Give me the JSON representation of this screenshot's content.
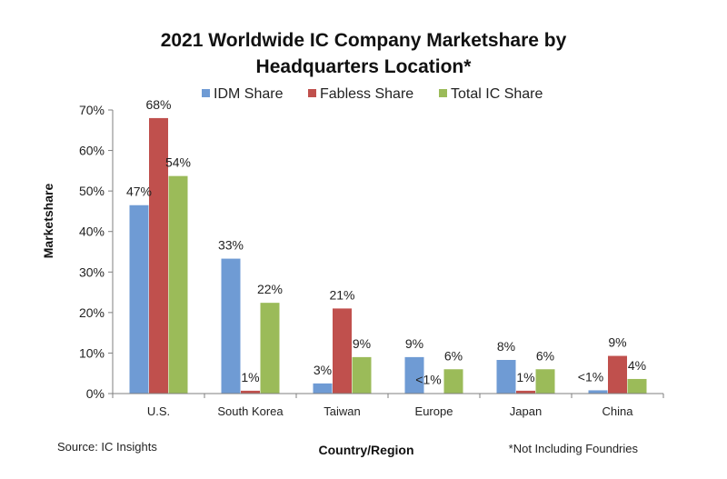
{
  "chart_data": {
    "type": "bar",
    "title_line1": "2021 Worldwide IC Company Marketshare by",
    "title_line2": "Headquarters Location*",
    "categories": [
      "U.S.",
      "South Korea",
      "Taiwan",
      "Europe",
      "Japan",
      "China"
    ],
    "series": [
      {
        "name": "IDM Share",
        "color": "#6f9bd4",
        "values": [
          46.5,
          33.3,
          2.5,
          9.0,
          8.3,
          0.8
        ],
        "labels": [
          "47%",
          "33%",
          "3%",
          "9%",
          "8%",
          "<1%"
        ]
      },
      {
        "name": "Fabless Share",
        "color": "#c0504d",
        "values": [
          68.0,
          0.7,
          21.0,
          0.1,
          0.7,
          9.3
        ],
        "labels": [
          "68%",
          "1%",
          "21%",
          "<1%",
          "1%",
          "9%"
        ]
      },
      {
        "name": "Total IC Share",
        "color": "#9bbb59",
        "values": [
          53.7,
          22.4,
          9.0,
          6.0,
          6.0,
          3.6
        ],
        "labels": [
          "54%",
          "22%",
          "9%",
          "6%",
          "6%",
          "4%"
        ]
      }
    ],
    "ylabel": "Marketshare",
    "xlabel": "Country/Region",
    "ylim": [
      0,
      70
    ],
    "yticks": [
      0,
      10,
      20,
      30,
      40,
      50,
      60,
      70
    ],
    "ytick_labels": [
      "0%",
      "10%",
      "20%",
      "30%",
      "40%",
      "50%",
      "60%",
      "70%"
    ],
    "grid": false,
    "legend_position": "top"
  },
  "footer": {
    "source": "Source: IC Insights",
    "note": "*Not Including Foundries"
  }
}
